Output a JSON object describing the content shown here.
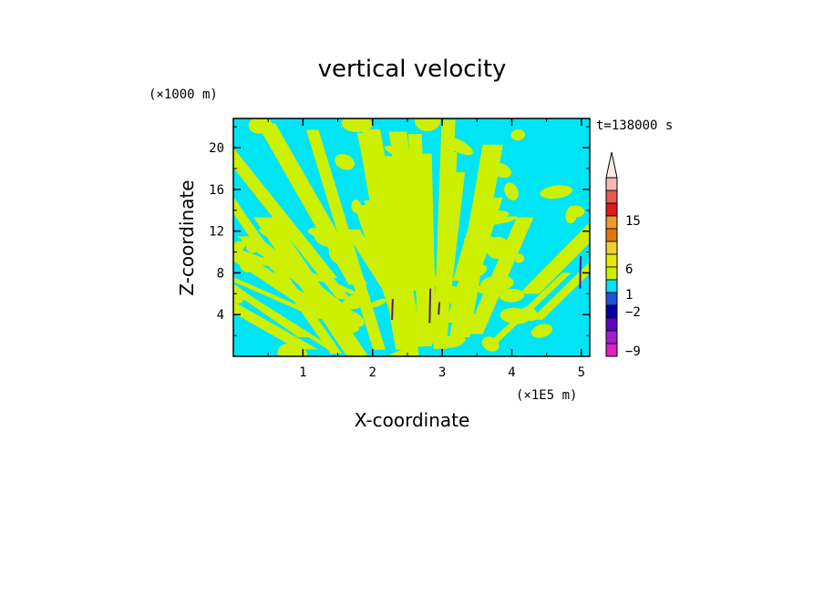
{
  "chart_data": {
    "type": "heatmap",
    "title": "vertical velocity",
    "xlabel": "X-coordinate",
    "ylabel": "Z-coordinate",
    "x_unit": "(×1E5 m)",
    "y_unit": "(×1000 m)",
    "time_label": "t=138000 s",
    "xlim": [
      0,
      5.12
    ],
    "ylim": [
      0,
      22.8
    ],
    "x_ticks": [
      "1",
      "2",
      "3",
      "4",
      "5"
    ],
    "y_ticks": [
      "4",
      "8",
      "12",
      "16",
      "20"
    ],
    "colorbar": {
      "labels": [
        "15",
        "6",
        "1",
        "−2",
        "−9"
      ],
      "colors": [
        "#f4b8b0",
        "#e85a50",
        "#e01818",
        "#f09828",
        "#e07808",
        "#f0d030",
        "#e8e800",
        "#ccf000",
        "#00e0f0",
        "#2050e0",
        "#0000a8",
        "#6000c0",
        "#a020d0",
        "#e020c0"
      ]
    },
    "colors": {
      "positive_small": "#ccf000",
      "negative_small": "#00e5f5",
      "negative_strong": "#5a1a8a"
    }
  }
}
